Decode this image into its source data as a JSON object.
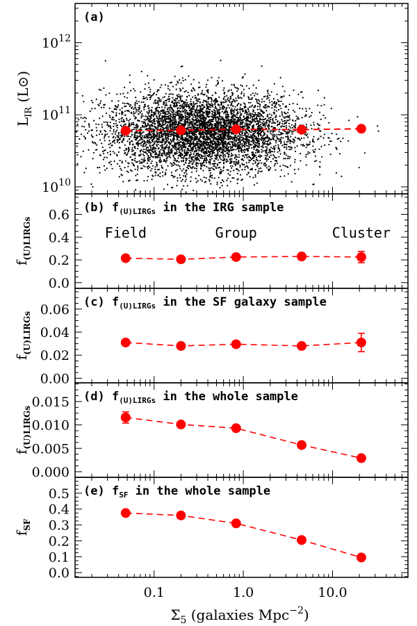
{
  "chart_data": [
    {
      "id": "a",
      "type": "scatter",
      "panel_label": "(a)",
      "ylabel": "L",
      "ylabel_sub": "IR",
      "ylabel_unit": "(L⊙)",
      "yscale": "log",
      "ylim": [
        8000000000,
        3500000000000
      ],
      "yticks": [
        {
          "value": 10000000000,
          "base": "10",
          "exp": "10"
        },
        {
          "value": 100000000000,
          "base": "10",
          "exp": "11"
        },
        {
          "value": 1000000000000,
          "base": "10",
          "exp": "12"
        }
      ],
      "scatter_note": "dense cloud of individual IRGs (approx. 5000 points)",
      "binned_series": {
        "name": "median",
        "x": [
          0.048,
          0.2,
          0.83,
          4.5,
          21.0
        ],
        "y": [
          60000000000,
          61000000000,
          63000000000,
          62000000000,
          64000000000
        ]
      }
    },
    {
      "id": "b",
      "type": "line",
      "panel_title": "(b) f",
      "panel_title_sub": "(U)LIRGs",
      "panel_title_rest": " in the IRG sample",
      "ylabel": "f",
      "ylabel_sub": "(U)LIRGs",
      "ylim": [
        -0.05,
        0.78
      ],
      "yticks": [
        "0.0",
        "0.2",
        "0.4",
        "0.6"
      ],
      "region_labels": [
        "Field",
        "Group",
        "Cluster"
      ],
      "series": [
        {
          "name": "f_(U)LIRGs",
          "x": [
            0.048,
            0.2,
            0.83,
            4.5,
            21.0
          ],
          "y": [
            0.215,
            0.205,
            0.225,
            0.23,
            0.225
          ],
          "err": [
            0.012,
            0.01,
            0.01,
            0.015,
            0.05
          ]
        }
      ]
    },
    {
      "id": "c",
      "type": "line",
      "panel_title": "(c) f",
      "panel_title_sub": "(U)LIRGs",
      "panel_title_rest": " in the SF galaxy sample",
      "ylabel": "f",
      "ylabel_sub": "(U)LIRGs",
      "ylim": [
        -0.004,
        0.078
      ],
      "yticks": [
        "0.00",
        "0.02",
        "0.04",
        "0.06"
      ],
      "series": [
        {
          "name": "f_(U)LIRGs",
          "x": [
            0.048,
            0.2,
            0.83,
            4.5,
            21.0
          ],
          "y": [
            0.031,
            0.028,
            0.0295,
            0.028,
            0.031
          ],
          "err": [
            0.002,
            0.001,
            0.001,
            0.0015,
            0.008
          ]
        }
      ]
    },
    {
      "id": "d",
      "type": "line",
      "panel_title": "(d) f",
      "panel_title_sub": "(U)LIRGs",
      "panel_title_rest": " in the whole sample",
      "ylabel": "f",
      "ylabel_sub": "(U)LIRGs",
      "ylim": [
        -0.0012,
        0.019
      ],
      "yticks": [
        "0.000",
        "0.005",
        "0.010",
        "0.015"
      ],
      "series": [
        {
          "name": "f_(U)LIRGs",
          "x": [
            0.048,
            0.2,
            0.83,
            4.5,
            21.0
          ],
          "y": [
            0.0116,
            0.0101,
            0.0093,
            0.0057,
            0.0029
          ],
          "err": [
            0.0012,
            0.0004,
            0.0004,
            0.0004,
            0.0004
          ]
        }
      ]
    },
    {
      "id": "e",
      "type": "line",
      "panel_title": "(e) f",
      "panel_title_sub": "SF",
      "panel_title_rest": " in the whole sample",
      "ylabel": "f",
      "ylabel_sub": "SF",
      "ylim": [
        -0.03,
        0.6
      ],
      "yticks": [
        "0.0",
        "0.1",
        "0.2",
        "0.3",
        "0.4",
        "0.5"
      ],
      "series": [
        {
          "name": "f_SF",
          "x": [
            0.048,
            0.2,
            0.83,
            4.5,
            21.0
          ],
          "y": [
            0.375,
            0.36,
            0.31,
            0.205,
            0.095
          ],
          "err": [
            0.005,
            0.005,
            0.005,
            0.005,
            0.005
          ]
        }
      ]
    }
  ],
  "x_axis": {
    "scale": "log",
    "xlim": [
      0.013,
      70
    ],
    "ticks": [
      "0.1",
      "1.0",
      "10.0"
    ],
    "label_symbol": "Σ",
    "label_sub": "5",
    "label_text": " (galaxies Mpc",
    "label_sup": "−2",
    "label_end": ")"
  },
  "colors": {
    "series": "#ff0000",
    "points": "#000000",
    "axes": "#000000"
  }
}
